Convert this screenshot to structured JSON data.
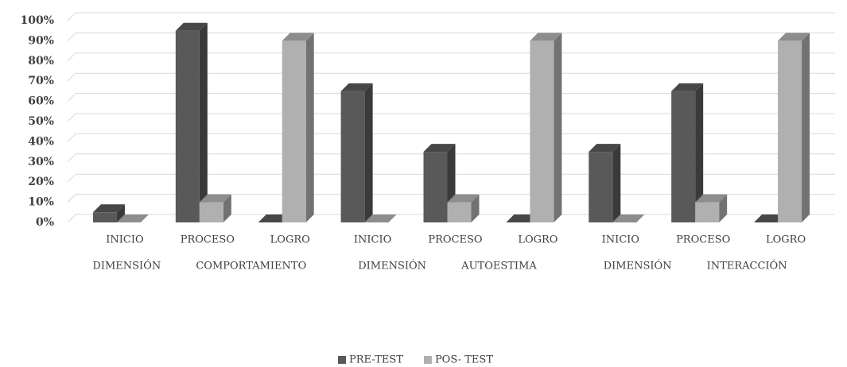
{
  "chart_data": {
    "type": "bar3d",
    "categories": [
      "INICIO",
      "PROCESO",
      "LOGRO",
      "INICIO",
      "PROCESO",
      "LOGRO",
      "INICIO",
      "PROCESO",
      "LOGRO"
    ],
    "groups": [
      "DIMENSIÓN COMPORTAMIENTO",
      "DIMENSIÓN AUTOESTIMA",
      "DIMENSIÓN INTERACCIÓN"
    ],
    "series": [
      {
        "name": "PRE-TEST",
        "color": "#595959",
        "values": [
          5,
          95,
          0,
          65,
          35,
          0,
          35,
          65,
          0
        ]
      },
      {
        "name": "POS- TEST",
        "color": "#b0b0b0",
        "values": [
          0,
          10,
          90,
          0,
          10,
          90,
          0,
          10,
          90
        ]
      }
    ],
    "ylim": [
      0,
      100
    ],
    "yticks": [
      {
        "value": 0,
        "label": "0%"
      },
      {
        "value": 10,
        "label": "10%"
      },
      {
        "value": 20,
        "label": "20%"
      },
      {
        "value": 30,
        "label": "30%"
      },
      {
        "value": 40,
        "label": "40%"
      },
      {
        "value": 50,
        "label": "50%"
      },
      {
        "value": 60,
        "label": "60%"
      },
      {
        "value": 70,
        "label": "70%"
      },
      {
        "value": 80,
        "label": "80%"
      },
      {
        "value": 90,
        "label": "90%"
      },
      {
        "value": 100,
        "label": "100%"
      }
    ],
    "grid": true,
    "legend": "bottom"
  }
}
